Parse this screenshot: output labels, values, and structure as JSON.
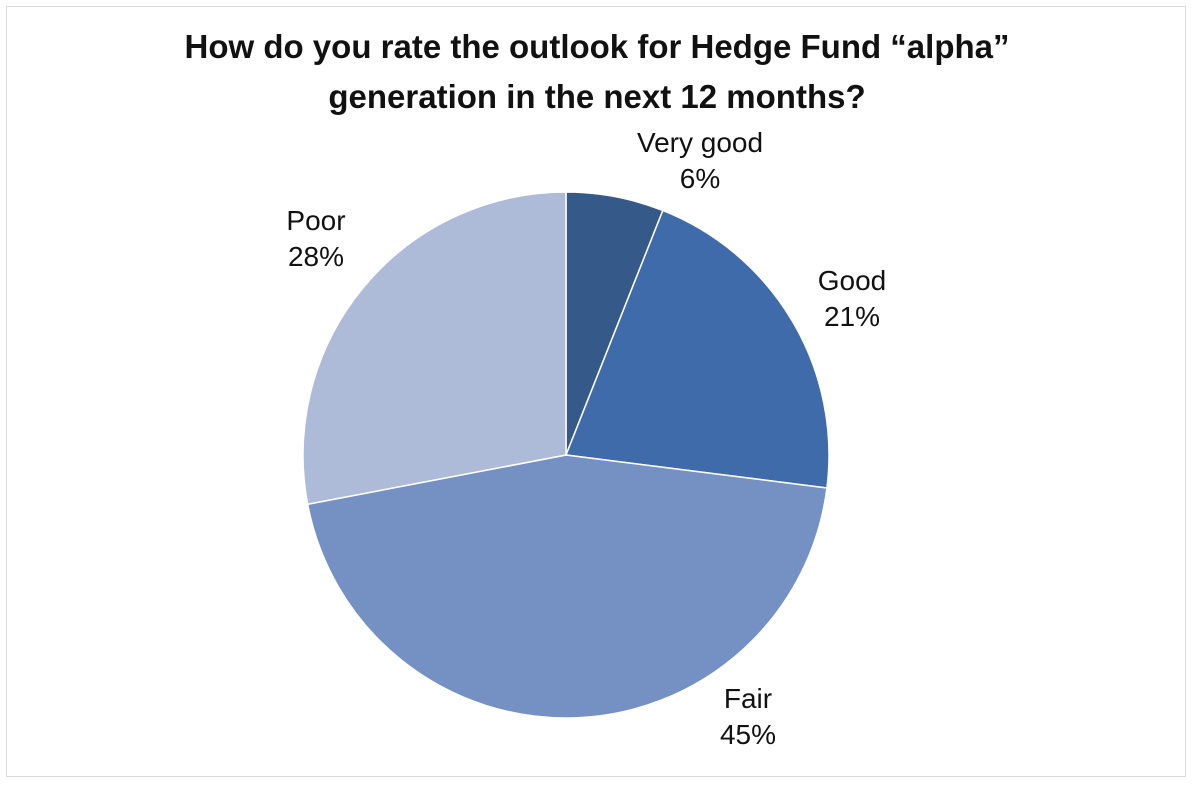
{
  "chart_data": {
    "type": "pie",
    "title": "How do you rate the outlook for Hedge Fund “alpha” generation in the next 12 months?",
    "title_lines": [
      "How do you rate the outlook for Hedge Fund “alpha”",
      "generation in the next 12 months?"
    ],
    "slices": [
      {
        "label": "Very good",
        "value": 6,
        "value_label": "6%",
        "color": "#355A8A"
      },
      {
        "label": "Good",
        "value": 21,
        "value_label": "21%",
        "color": "#3F6BAA"
      },
      {
        "label": "Fair",
        "value": 45,
        "value_label": "45%",
        "color": "#7590C3"
      },
      {
        "label": "Poor",
        "value": 28,
        "value_label": "28%",
        "color": "#ADBBD9"
      }
    ],
    "start_angle": "12 o'clock",
    "direction": "clockwise",
    "legend": "none",
    "data_labels": "outside, category name and percentage"
  }
}
